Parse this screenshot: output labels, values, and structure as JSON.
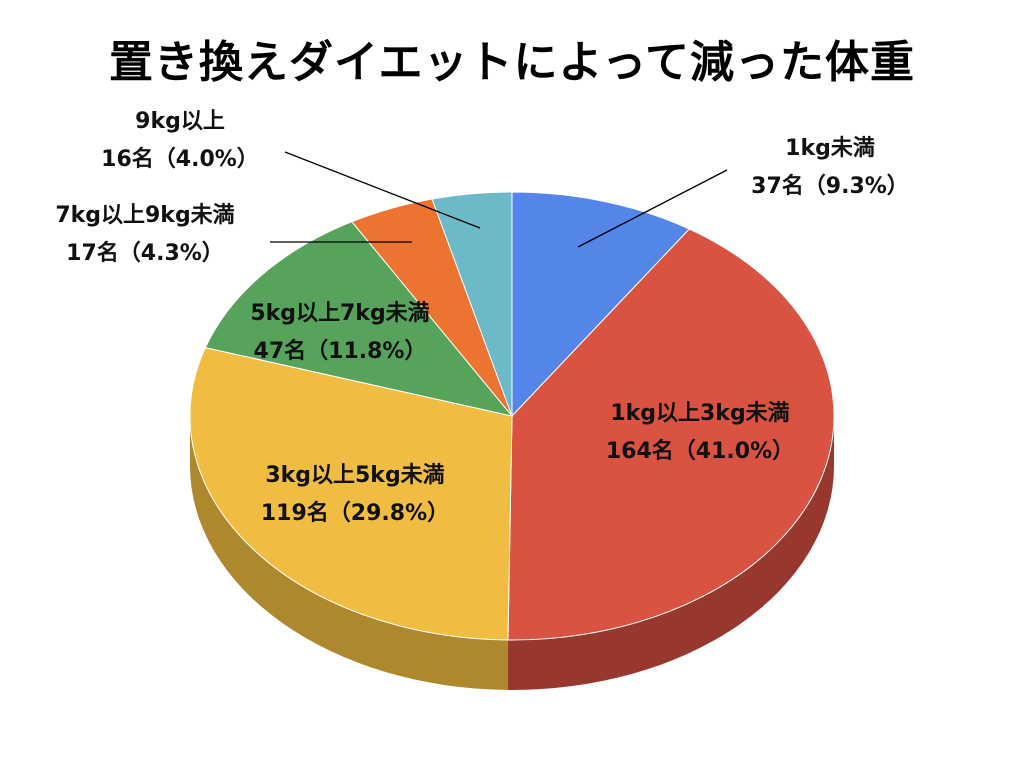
{
  "chart_data": {
    "type": "pie",
    "title": "置き換えダイエットによって減った体重",
    "slices": [
      {
        "label": "1kg未満",
        "count_label": "37名（9.3%）",
        "value": 9.3,
        "color": "#5486EA",
        "side_color": "#3A5FA8"
      },
      {
        "label": "1kg以上3kg未満",
        "count_label": "164名（41.0%）",
        "value": 41.0,
        "color": "#D95242",
        "side_color": "#98372E"
      },
      {
        "label": "3kg以上5kg未満",
        "count_label": "119名（29.8%）",
        "value": 29.8,
        "color": "#F0BD42",
        "side_color": "#AE882C"
      },
      {
        "label": "5kg以上7kg未満",
        "count_label": "47名（11.8%）",
        "value": 11.8,
        "color": "#58A35B",
        "side_color": "#3D7440"
      },
      {
        "label": "7kg以上9kg未満",
        "count_label": "17名（4.3%）",
        "value": 4.3,
        "color": "#EC7430",
        "side_color": "#A9521F"
      },
      {
        "label": "9kg以上",
        "count_label": "16名（4.0%）",
        "value": 4.0,
        "color": "#6CBAC7",
        "side_color": "#4B8690"
      }
    ],
    "legend": "none"
  }
}
